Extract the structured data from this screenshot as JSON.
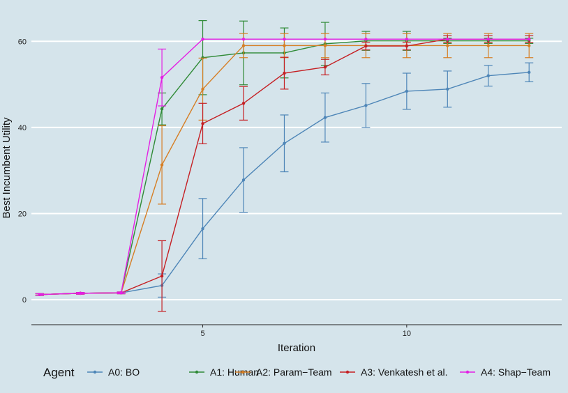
{
  "chart_data": {
    "type": "line",
    "title": "",
    "xlabel": "Iteration",
    "ylabel": "Best Incumbent Utility",
    "xlim": [
      0.8,
      13.8
    ],
    "ylim": [
      -5.8,
      67
    ],
    "x_ticks": [
      5,
      10
    ],
    "y_ticks": [
      0,
      20,
      40,
      60
    ],
    "grid": "horizontal",
    "legend": {
      "title": "Agent",
      "position": "bottom"
    },
    "x": [
      1,
      2,
      3,
      4,
      5,
      6,
      7,
      8,
      9,
      10,
      11,
      12,
      13
    ],
    "series": [
      {
        "name": "A0: BO",
        "color": "#4d85b7",
        "values": [
          1.2,
          1.5,
          1.6,
          3.3,
          16.5,
          27.8,
          36.3,
          42.3,
          45.1,
          48.4,
          48.9,
          52.0,
          52.8
        ],
        "error": [
          0.2,
          0.2,
          0.2,
          2.7,
          7.0,
          7.5,
          6.6,
          5.7,
          5.1,
          4.2,
          4.2,
          2.4,
          2.2
        ]
      },
      {
        "name": "A1: Human",
        "color": "#2f8a36",
        "values": [
          1.2,
          1.5,
          1.6,
          44.3,
          56.2,
          57.3,
          57.3,
          59.4,
          60.1,
          60.1,
          60.1,
          60.1,
          60.1
        ],
        "error": [
          0.2,
          0.2,
          0.2,
          3.7,
          8.6,
          7.4,
          5.8,
          5.0,
          2.2,
          2.2,
          0.6,
          0.6,
          0.6
        ]
      },
      {
        "name": "A2: Param−Team",
        "color": "#d67e24",
        "values": [
          1.2,
          1.5,
          1.6,
          31.3,
          48.9,
          59.0,
          59.0,
          59.0,
          59.0,
          59.0,
          59.0,
          59.0,
          59.0
        ],
        "error": [
          0.2,
          0.2,
          0.2,
          9.1,
          7.2,
          2.8,
          2.8,
          2.8,
          2.8,
          2.8,
          2.8,
          2.8,
          2.8
        ]
      },
      {
        "name": "A3: Venkatesh et al.",
        "color": "#c51f23",
        "values": [
          1.2,
          1.5,
          1.6,
          5.5,
          40.9,
          45.6,
          52.6,
          54.0,
          58.9,
          58.9,
          60.5,
          60.5,
          60.5
        ],
        "error": [
          0.2,
          0.2,
          0.2,
          8.2,
          4.7,
          3.9,
          3.7,
          1.8,
          0.9,
          0.9,
          0.8,
          0.8,
          0.8
        ]
      },
      {
        "name": "A4: Shap−Team",
        "color": "#e41fe4",
        "values": [
          1.2,
          1.5,
          1.6,
          51.6,
          60.5,
          60.5,
          60.5,
          60.5,
          60.5,
          60.5,
          60.5,
          60.5,
          60.5
        ],
        "error": [
          0.2,
          0.2,
          0.2,
          6.6,
          0.1,
          0.1,
          0.1,
          0.1,
          0.1,
          0.1,
          0.1,
          0.1,
          0.1
        ]
      }
    ]
  }
}
